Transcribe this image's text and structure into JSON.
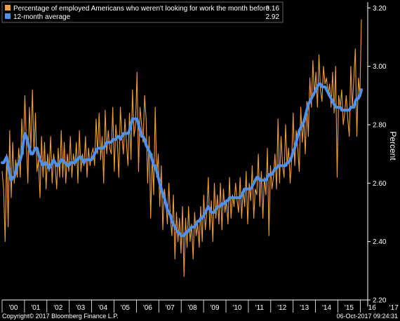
{
  "chart_data": {
    "type": "line",
    "ylabel": "Percent",
    "ylim": [
      2.2,
      3.22
    ],
    "yticks": [
      "2.20",
      "2.40",
      "2.60",
      "2.80",
      "3.00",
      "3.20"
    ],
    "xticks": [
      "'00",
      "'01",
      "'02",
      "'03",
      "'04",
      "'05",
      "'06",
      "'07",
      "'08",
      "'09",
      "'10",
      "'11",
      "'12",
      "'13",
      "'14",
      "'15",
      "'16",
      "'17"
    ],
    "grid": false,
    "legend_position": "top-left",
    "series": [
      {
        "name": "Percentage of employed Americans who weren't looking for work the month before",
        "last_value": "3.16",
        "color": "#f0a030",
        "values": [
          2.64,
          2.58,
          2.4,
          2.7,
          2.45,
          2.78,
          2.55,
          2.74,
          2.6,
          2.68,
          2.62,
          2.72,
          2.62,
          2.82,
          2.7,
          2.9,
          2.74,
          2.6,
          2.86,
          2.72,
          2.92,
          2.7,
          2.84,
          2.64,
          2.68,
          2.55,
          2.76,
          2.62,
          2.74,
          2.58,
          2.7,
          2.64,
          2.76,
          2.6,
          2.7,
          2.66,
          2.58,
          2.72,
          2.62,
          2.78,
          2.62,
          2.74,
          2.6,
          2.7,
          2.64,
          2.76,
          2.62,
          2.7,
          2.66,
          2.74,
          2.6,
          2.78,
          2.64,
          2.7,
          2.66,
          2.76,
          2.62,
          2.72,
          2.66,
          2.7,
          2.72,
          2.66,
          2.82,
          2.7,
          2.84,
          2.68,
          2.76,
          2.6,
          2.85,
          2.7,
          2.78,
          2.72,
          2.7,
          2.86,
          2.64,
          2.8,
          2.74,
          2.62,
          2.86,
          2.76,
          2.7,
          2.82,
          2.74,
          2.66,
          2.84,
          2.68,
          2.92,
          2.76,
          2.8,
          2.98,
          2.64,
          2.86,
          2.8,
          2.74,
          2.9,
          2.82,
          2.6,
          2.76,
          2.48,
          2.7,
          2.56,
          2.86,
          2.62,
          2.7,
          2.52,
          2.66,
          2.44,
          2.58,
          2.54,
          2.46,
          2.6,
          2.48,
          2.42,
          2.56,
          2.34,
          2.5,
          2.4,
          2.48,
          2.36,
          2.52,
          2.28,
          2.48,
          2.38,
          2.52,
          2.4,
          2.46,
          2.34,
          2.5,
          2.42,
          2.46,
          2.38,
          2.52,
          2.4,
          2.56,
          2.44,
          2.5,
          2.62,
          2.44,
          2.54,
          2.4,
          2.6,
          2.48,
          2.56,
          2.46,
          2.6,
          2.44,
          2.58,
          2.5,
          2.54,
          2.46,
          2.62,
          2.48,
          2.56,
          2.52,
          2.6,
          2.54,
          2.5,
          2.62,
          2.48,
          2.58,
          2.52,
          2.64,
          2.46,
          2.6,
          2.54,
          2.66,
          2.48,
          2.58,
          2.56,
          2.7,
          2.52,
          2.64,
          2.48,
          2.62,
          2.56,
          2.72,
          2.42,
          2.66,
          2.58,
          2.62,
          2.7,
          2.58,
          2.82,
          2.6,
          2.76,
          2.66,
          2.62,
          2.8,
          2.66,
          2.72,
          2.6,
          2.68,
          2.84,
          2.66,
          2.78,
          2.72,
          2.64,
          2.86,
          2.74,
          2.82,
          2.7,
          2.88,
          2.76,
          2.96,
          2.86,
          3.02,
          2.9,
          2.98,
          2.86,
          3.04,
          2.92,
          2.88,
          3.0,
          2.94,
          2.96,
          2.9,
          2.94,
          2.86,
          2.98,
          2.84,
          3.0,
          2.62,
          2.9,
          2.86,
          2.92,
          2.8,
          2.84,
          2.9,
          2.82,
          2.76,
          3.0,
          2.86,
          2.96,
          3.06,
          2.76,
          2.96,
          2.9,
          3.16
        ]
      },
      {
        "name": "12-month average",
        "last_value": "2.92",
        "color": "#4d90f0",
        "values": [
          2.67,
          2.67,
          2.68,
          2.69,
          2.66,
          2.63,
          2.61,
          2.62,
          2.62,
          2.64,
          2.66,
          2.67,
          2.68,
          2.7,
          2.74,
          2.77,
          2.76,
          2.74,
          2.72,
          2.7,
          2.7,
          2.71,
          2.72,
          2.72,
          2.7,
          2.68,
          2.67,
          2.66,
          2.67,
          2.67,
          2.66,
          2.65,
          2.66,
          2.67,
          2.68,
          2.67,
          2.66,
          2.66,
          2.67,
          2.68,
          2.68,
          2.67,
          2.67,
          2.66,
          2.66,
          2.67,
          2.67,
          2.67,
          2.67,
          2.68,
          2.68,
          2.69,
          2.69,
          2.68,
          2.67,
          2.68,
          2.68,
          2.68,
          2.68,
          2.68,
          2.69,
          2.7,
          2.71,
          2.72,
          2.72,
          2.72,
          2.72,
          2.72,
          2.73,
          2.74,
          2.74,
          2.74,
          2.74,
          2.75,
          2.75,
          2.75,
          2.76,
          2.76,
          2.75,
          2.76,
          2.77,
          2.77,
          2.77,
          2.77,
          2.78,
          2.8,
          2.82,
          2.82,
          2.82,
          2.82,
          2.8,
          2.78,
          2.76,
          2.76,
          2.75,
          2.73,
          2.72,
          2.71,
          2.7,
          2.68,
          2.66,
          2.66,
          2.64,
          2.62,
          2.6,
          2.58,
          2.56,
          2.55,
          2.53,
          2.51,
          2.5,
          2.49,
          2.47,
          2.46,
          2.45,
          2.44,
          2.43,
          2.43,
          2.42,
          2.42,
          2.42,
          2.43,
          2.43,
          2.44,
          2.44,
          2.45,
          2.45,
          2.45,
          2.46,
          2.47,
          2.47,
          2.48,
          2.48,
          2.49,
          2.5,
          2.51,
          2.52,
          2.51,
          2.5,
          2.5,
          2.5,
          2.51,
          2.52,
          2.52,
          2.52,
          2.53,
          2.53,
          2.53,
          2.54,
          2.54,
          2.55,
          2.55,
          2.55,
          2.55,
          2.55,
          2.55,
          2.55,
          2.55,
          2.56,
          2.57,
          2.58,
          2.58,
          2.58,
          2.58,
          2.58,
          2.59,
          2.6,
          2.61,
          2.62,
          2.62,
          2.61,
          2.61,
          2.61,
          2.61,
          2.61,
          2.62,
          2.63,
          2.63,
          2.63,
          2.64,
          2.65,
          2.65,
          2.66,
          2.66,
          2.66,
          2.66,
          2.66,
          2.66,
          2.67,
          2.67,
          2.68,
          2.69,
          2.71,
          2.72,
          2.74,
          2.76,
          2.78,
          2.79,
          2.8,
          2.81,
          2.83,
          2.85,
          2.87,
          2.88,
          2.89,
          2.9,
          2.91,
          2.92,
          2.93,
          2.94,
          2.94,
          2.93,
          2.93,
          2.93,
          2.92,
          2.91,
          2.9,
          2.89,
          2.88,
          2.87,
          2.86,
          2.86,
          2.86,
          2.86,
          2.85,
          2.85,
          2.85,
          2.85,
          2.85,
          2.85,
          2.86,
          2.86,
          2.86,
          2.88,
          2.89,
          2.89,
          2.9,
          2.92
        ]
      }
    ]
  },
  "footer": {
    "copyright": "Copyright© 2017 Bloomberg Finance L.P.",
    "timestamp": "06-Oct-2017 09:24:31"
  }
}
